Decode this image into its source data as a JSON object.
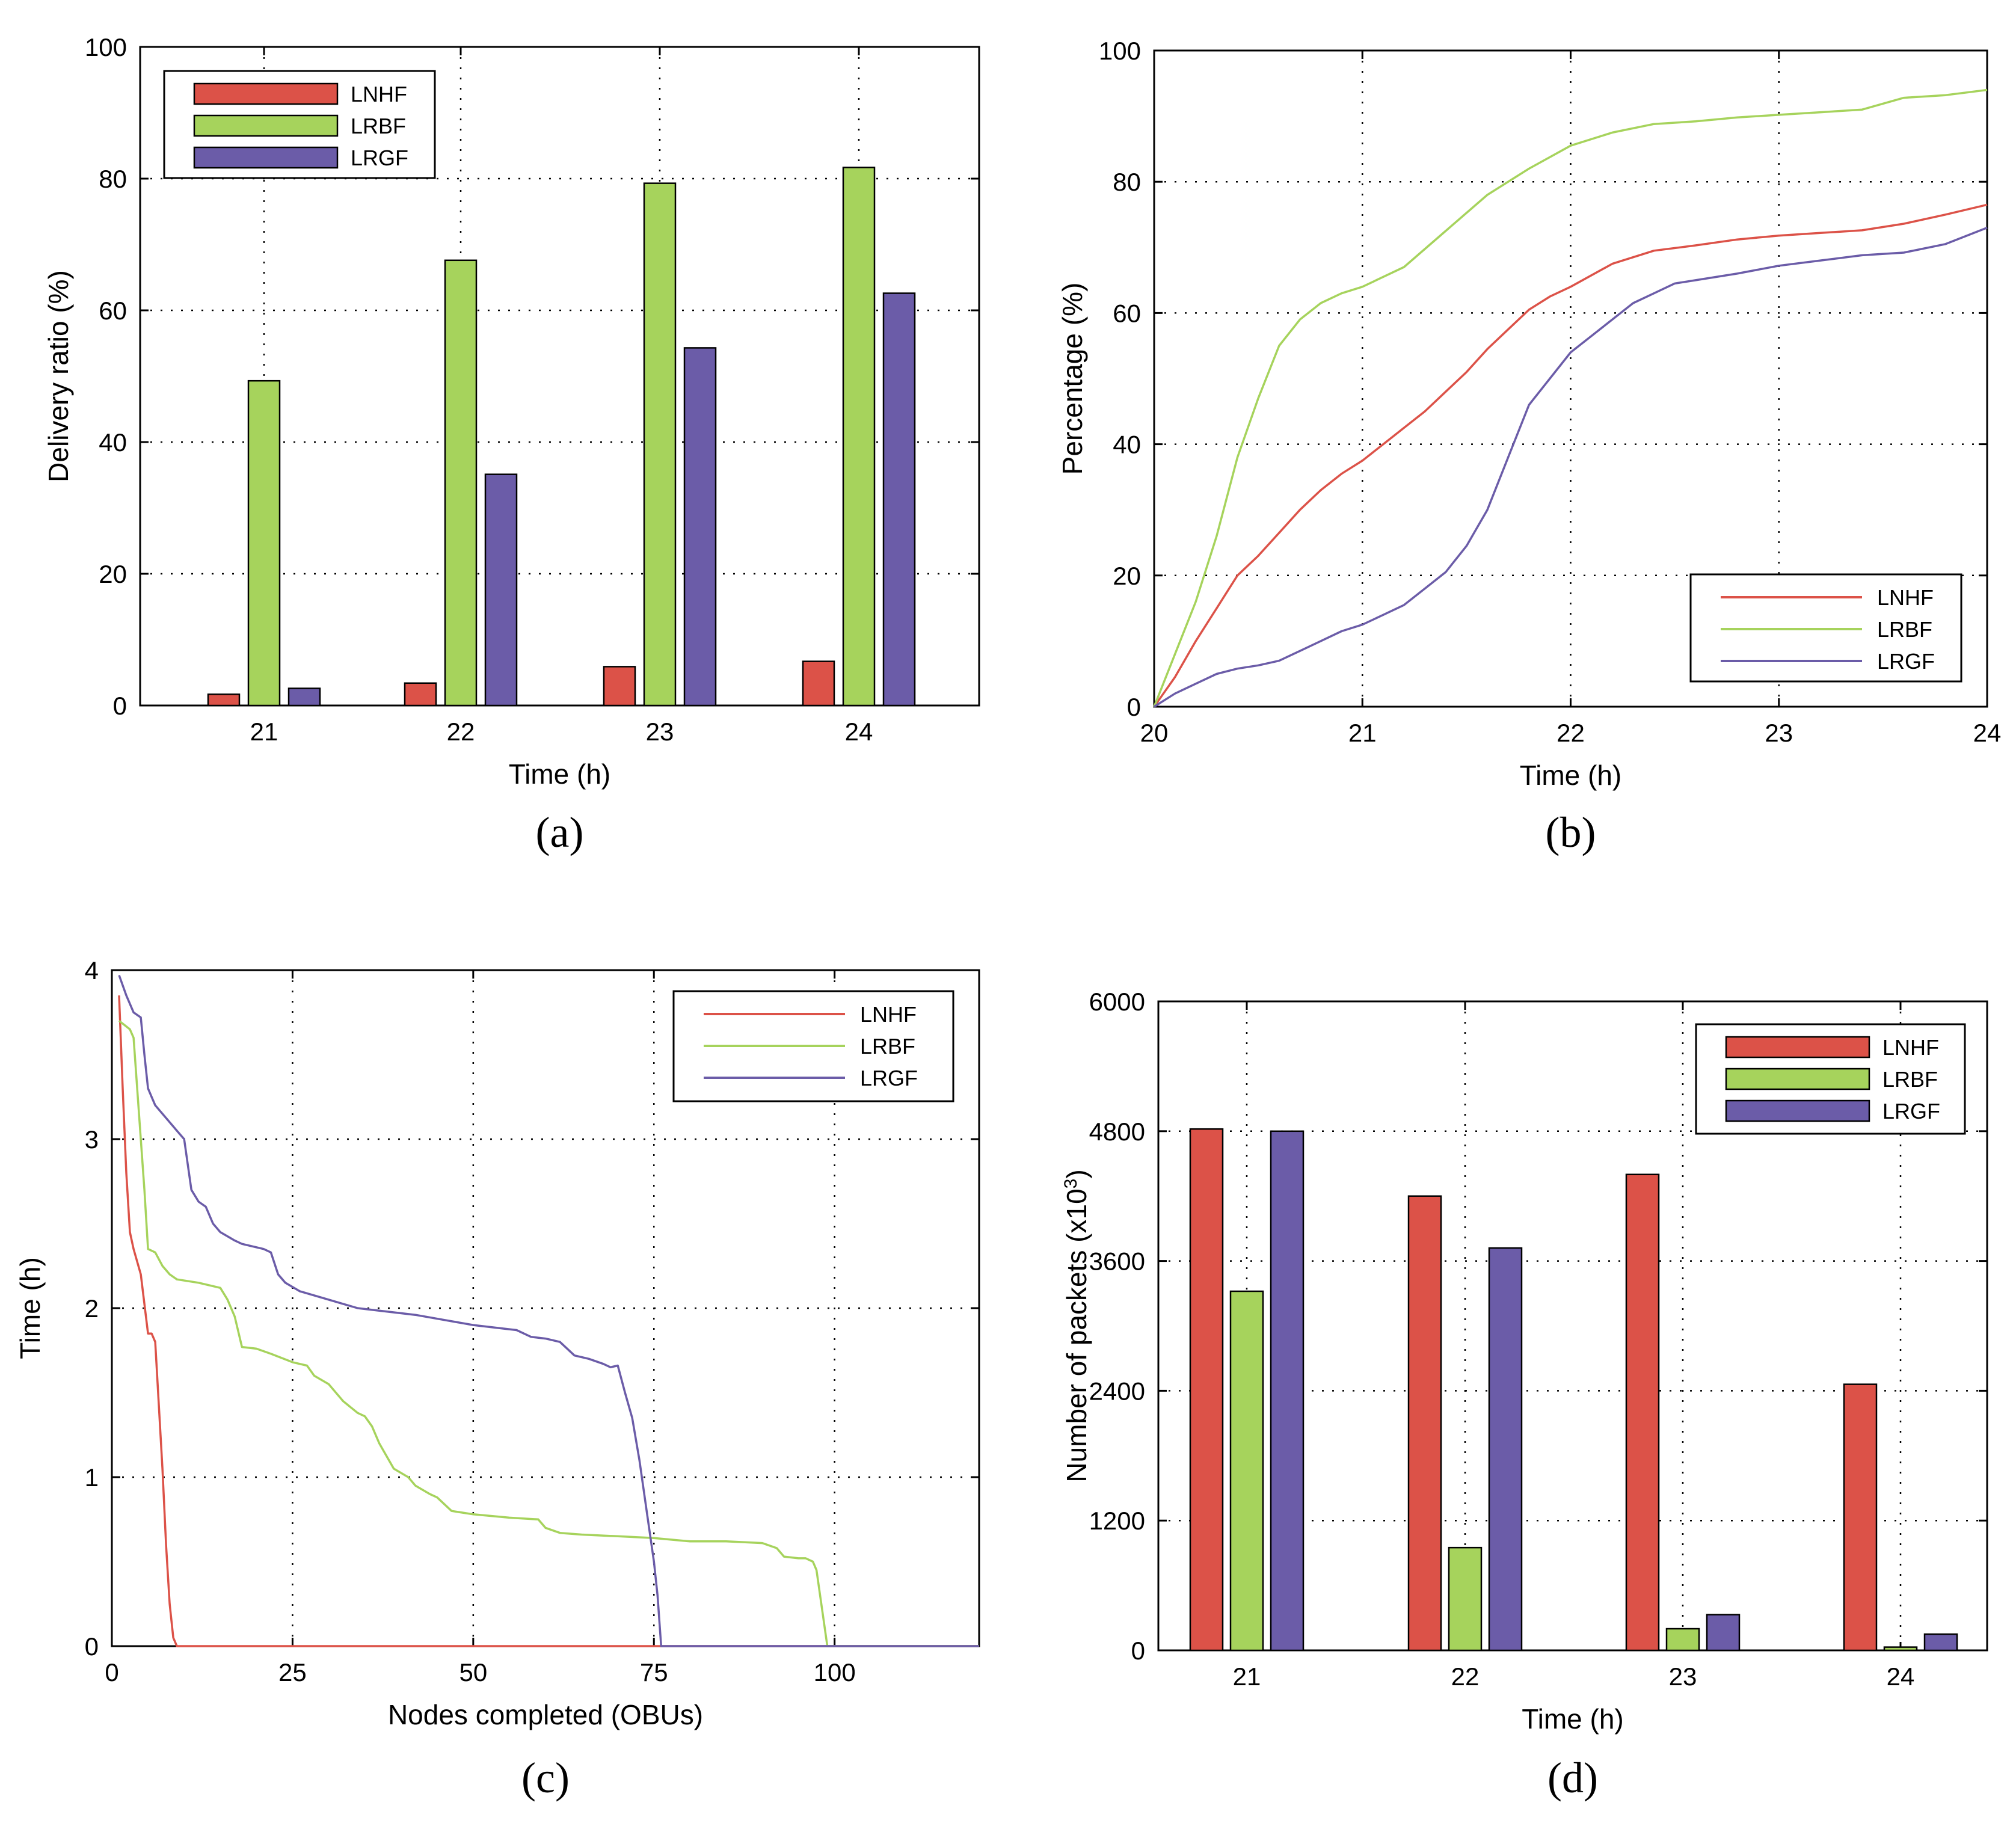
{
  "colors": {
    "LNHF": "#dc5248",
    "LRBF": "#a6d35c",
    "LRGF": "#6b5ca8"
  },
  "chart_data": [
    {
      "type": "bar",
      "caption": "(a)",
      "xlabel": "Time (h)",
      "ylabel": "Delivery ratio (%)",
      "ylim": [
        0,
        100
      ],
      "yticks": [
        "0",
        "20",
        "40",
        "60",
        "80",
        "100"
      ],
      "categories": [
        "21",
        "22",
        "23",
        "24"
      ],
      "legend_position": "top-left",
      "series": [
        {
          "name": "LNHF",
          "values": [
            1.7,
            3.4,
            5.9,
            6.7
          ]
        },
        {
          "name": "LRBF",
          "values": [
            49.3,
            67.6,
            79.3,
            81.7
          ]
        },
        {
          "name": "LRGF",
          "values": [
            2.6,
            35.1,
            54.3,
            62.6
          ]
        }
      ]
    },
    {
      "type": "line",
      "caption": "(b)",
      "xlabel": "Time (h)",
      "ylabel": "Percentage (%)",
      "xlim": [
        20,
        24
      ],
      "ylim": [
        0,
        100
      ],
      "xticks": [
        "20",
        "21",
        "22",
        "23",
        "24"
      ],
      "yticks": [
        "0",
        "20",
        "40",
        "60",
        "80",
        "100"
      ],
      "legend_position": "bottom-right",
      "series": [
        {
          "name": "LNHF",
          "x": [
            20,
            20.1,
            20.2,
            20.3,
            20.4,
            20.5,
            20.6,
            20.7,
            20.8,
            20.9,
            21,
            21.1,
            21.2,
            21.3,
            21.4,
            21.5,
            21.6,
            21.7,
            21.8,
            21.9,
            22,
            22.2,
            22.4,
            22.6,
            22.8,
            23,
            23.2,
            23.4,
            23.6,
            23.8,
            24
          ],
          "y": [
            0,
            4.5,
            10,
            15,
            20,
            23,
            26.5,
            30,
            33,
            35.5,
            37.5,
            40,
            42.5,
            45,
            48,
            51,
            54.5,
            57.5,
            60.5,
            62.5,
            64,
            67.5,
            69.5,
            70.3,
            71.2,
            71.8,
            72.2,
            72.6,
            73.6,
            75,
            76.5
          ]
        },
        {
          "name": "LRBF",
          "x": [
            20,
            20.1,
            20.2,
            20.3,
            20.4,
            20.5,
            20.6,
            20.7,
            20.8,
            20.9,
            21,
            21.2,
            21.4,
            21.6,
            21.8,
            22,
            22.2,
            22.4,
            22.6,
            22.8,
            23,
            23.2,
            23.4,
            23.6,
            23.8,
            24
          ],
          "y": [
            0,
            8,
            16,
            26,
            38,
            47,
            55,
            59,
            61.5,
            63,
            64,
            67,
            72.5,
            78,
            82,
            85.5,
            87.5,
            88.8,
            89.2,
            89.8,
            90.2,
            90.6,
            91,
            92.8,
            93.2,
            94
          ]
        },
        {
          "name": "LRGF",
          "x": [
            20,
            20.1,
            20.2,
            20.3,
            20.4,
            20.5,
            20.6,
            20.7,
            20.8,
            20.9,
            21,
            21.1,
            21.2,
            21.3,
            21.4,
            21.5,
            21.6,
            21.7,
            21.8,
            21.9,
            22,
            22.1,
            22.2,
            22.3,
            22.4,
            22.5,
            22.6,
            22.8,
            23,
            23.2,
            23.4,
            23.6,
            23.8,
            24
          ],
          "y": [
            0,
            2,
            3.5,
            5,
            5.8,
            6.3,
            7,
            8.5,
            10,
            11.5,
            12.5,
            14,
            15.5,
            18,
            20.5,
            24.5,
            30,
            38,
            46,
            50,
            54,
            56.5,
            59,
            61.5,
            63,
            64.5,
            65,
            66,
            67.2,
            68,
            68.8,
            69.2,
            70.5,
            73
          ]
        }
      ],
      "legend": [
        "LNHF",
        "LRBF",
        "LRGF"
      ]
    },
    {
      "type": "line",
      "caption": "(c)",
      "xlabel": "Nodes completed (OBUs)",
      "ylabel": "Time (h)",
      "xlim": [
        0,
        120
      ],
      "ylim": [
        0,
        4
      ],
      "xticks": [
        "0",
        "25",
        "50",
        "75",
        "100"
      ],
      "yticks": [
        "0",
        "1",
        "2",
        "3",
        "4"
      ],
      "legend_position": "top-right",
      "series": [
        {
          "name": "LNHF",
          "x": [
            1,
            1.5,
            2,
            2.5,
            3,
            4,
            5,
            5.5,
            6,
            7,
            7.5,
            8,
            8.5,
            9,
            120
          ],
          "y": [
            3.85,
            3.3,
            2.8,
            2.45,
            2.35,
            2.2,
            1.85,
            1.85,
            1.8,
            1.05,
            0.6,
            0.25,
            0.05,
            0,
            0
          ]
        },
        {
          "name": "LRBF",
          "x": [
            1,
            2.5,
            3,
            3.5,
            4,
            4.5,
            5,
            6,
            7,
            8,
            9,
            12,
            15,
            16,
            17,
            18,
            20,
            22,
            25,
            27,
            28,
            30,
            32,
            34,
            35,
            36,
            37,
            39,
            41,
            42,
            44,
            45,
            47,
            50,
            55,
            59,
            60,
            62,
            65,
            70,
            75,
            80,
            85,
            90,
            92,
            93,
            95,
            96,
            97,
            97.5,
            98,
            99,
            120
          ],
          "y": [
            3.7,
            3.65,
            3.6,
            3.3,
            3.0,
            2.7,
            2.35,
            2.33,
            2.25,
            2.2,
            2.17,
            2.15,
            2.12,
            2.05,
            1.95,
            1.77,
            1.76,
            1.73,
            1.68,
            1.66,
            1.6,
            1.55,
            1.45,
            1.38,
            1.36,
            1.3,
            1.2,
            1.05,
            1.0,
            0.95,
            0.9,
            0.88,
            0.8,
            0.78,
            0.76,
            0.75,
            0.7,
            0.67,
            0.66,
            0.65,
            0.64,
            0.62,
            0.62,
            0.61,
            0.58,
            0.53,
            0.52,
            0.52,
            0.5,
            0.45,
            0.3,
            0,
            0
          ]
        },
        {
          "name": "LRGF",
          "x": [
            1,
            2,
            3,
            4,
            4.5,
            5,
            5.5,
            6,
            8,
            9,
            10,
            11,
            12,
            13,
            14,
            15,
            17,
            18,
            21,
            22,
            23,
            24,
            26,
            30,
            34,
            38,
            42,
            46,
            50,
            54,
            56,
            58,
            60,
            62,
            64,
            66,
            68,
            69,
            70,
            71,
            72,
            73,
            74,
            75,
            75.5,
            76,
            120
          ],
          "y": [
            3.97,
            3.85,
            3.75,
            3.72,
            3.5,
            3.3,
            3.25,
            3.2,
            3.1,
            3.05,
            3.0,
            2.7,
            2.63,
            2.6,
            2.5,
            2.45,
            2.4,
            2.38,
            2.35,
            2.33,
            2.2,
            2.15,
            2.1,
            2.05,
            2.0,
            1.98,
            1.96,
            1.93,
            1.9,
            1.88,
            1.87,
            1.83,
            1.82,
            1.8,
            1.72,
            1.7,
            1.67,
            1.65,
            1.66,
            1.5,
            1.35,
            1.1,
            0.8,
            0.5,
            0.3,
            0,
            0
          ]
        }
      ],
      "legend": [
        "LNHF",
        "LRBF",
        "LRGF"
      ]
    },
    {
      "type": "bar",
      "caption": "(d)",
      "xlabel": "Time (h)",
      "ylabel": "Number of packets (x10",
      "ylabel_sup": "3",
      "ylabel_end": ")",
      "ylim": [
        0,
        6000
      ],
      "yticks": [
        "0",
        "1200",
        "2400",
        "3600",
        "4800",
        "6000"
      ],
      "categories": [
        "21",
        "22",
        "23",
        "24"
      ],
      "legend_position": "top-right",
      "series": [
        {
          "name": "LNHF",
          "values": [
            4820,
            4200,
            4400,
            2460
          ]
        },
        {
          "name": "LRBF",
          "values": [
            3320,
            950,
            200,
            30
          ]
        },
        {
          "name": "LRGF",
          "values": [
            4800,
            3720,
            330,
            150
          ]
        }
      ]
    }
  ]
}
